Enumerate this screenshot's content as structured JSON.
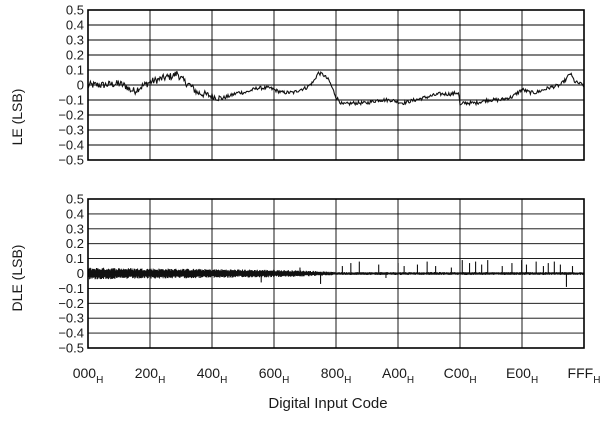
{
  "chart_data": [
    {
      "type": "line",
      "ylabel": "LE (LSB)",
      "ylim": [
        -0.5,
        0.5
      ],
      "yticks": [
        "0.5",
        "0.4",
        "0.3",
        "0.2",
        "0.1",
        "0",
        "−0.1",
        "−0.2",
        "−0.3",
        "−0.4",
        "−0.5"
      ],
      "xlim": [
        0,
        4095
      ],
      "grid": true,
      "series": [
        {
          "x": [
            0,
            128,
            256,
            320,
            340,
            384,
            420,
            512,
            600,
            640,
            700,
            740,
            760,
            800,
            840,
            900,
            1000,
            1050,
            1100,
            1180,
            1240,
            1300,
            1400,
            1500,
            1600,
            1700,
            1750,
            1800,
            1830,
            1860,
            1900,
            1940,
            1990,
            2048,
            2100,
            2200,
            2300,
            2400,
            2500,
            2600,
            2700,
            2800,
            2900,
            3000,
            3060,
            3072,
            3100,
            3200,
            3300,
            3400,
            3500,
            3584,
            3650,
            3700,
            3800,
            3900,
            3950,
            3980,
            4020,
            4095
          ],
          "y": [
            0.0,
            0.0,
            0.01,
            -0.01,
            -0.03,
            -0.04,
            -0.02,
            0.02,
            0.04,
            0.05,
            0.06,
            0.08,
            0.05,
            0.02,
            0.0,
            -0.05,
            -0.07,
            -0.08,
            -0.09,
            -0.07,
            -0.05,
            -0.05,
            -0.02,
            -0.02,
            -0.05,
            -0.05,
            -0.03,
            -0.02,
            0.0,
            0.02,
            0.08,
            0.07,
            0.03,
            -0.08,
            -0.13,
            -0.12,
            -0.12,
            -0.1,
            -0.1,
            -0.12,
            -0.1,
            -0.08,
            -0.06,
            -0.06,
            -0.05,
            -0.14,
            -0.12,
            -0.12,
            -0.1,
            -0.1,
            -0.08,
            -0.03,
            -0.05,
            -0.05,
            -0.02,
            0.0,
            0.04,
            0.08,
            0.02,
            0.0
          ]
        }
      ]
    },
    {
      "type": "line",
      "ylabel": "DLE (LSB)",
      "xlabel": "Digital Input Code",
      "ylim": [
        -0.5,
        0.5
      ],
      "yticks": [
        "0.5",
        "0.4",
        "0.3",
        "0.2",
        "0.1",
        "0",
        "−0.1",
        "−0.2",
        "−0.3",
        "−0.4",
        "−0.5"
      ],
      "xlim": [
        0,
        4095
      ],
      "grid": true,
      "xticks": [
        {
          "value": 0,
          "main": "000",
          "sub": "H"
        },
        {
          "value": 512,
          "main": "200",
          "sub": "H"
        },
        {
          "value": 1024,
          "main": "400",
          "sub": "H"
        },
        {
          "value": 1536,
          "main": "600",
          "sub": "H"
        },
        {
          "value": 2048,
          "main": "800",
          "sub": "H"
        },
        {
          "value": 2560,
          "main": "A00",
          "sub": "H"
        },
        {
          "value": 3072,
          "main": "C00",
          "sub": "H"
        },
        {
          "value": 3584,
          "main": "E00",
          "sub": "H"
        },
        {
          "value": 4095,
          "main": "FFF",
          "sub": "H"
        }
      ],
      "band_envelope": {
        "x": [
          0,
          512,
          1024,
          1536,
          1800,
          2048,
          4095
        ],
        "upper": [
          0.04,
          0.035,
          0.03,
          0.025,
          0.02,
          0.01,
          0.01
        ],
        "lower": [
          -0.04,
          -0.035,
          -0.03,
          -0.025,
          -0.02,
          -0.01,
          -0.01
        ]
      },
      "spikes": [
        {
          "x": 1430,
          "y": -0.06
        },
        {
          "x": 1750,
          "y": 0.04
        },
        {
          "x": 1920,
          "y": -0.07
        },
        {
          "x": 2100,
          "y": 0.05
        },
        {
          "x": 2170,
          "y": 0.07
        },
        {
          "x": 2240,
          "y": 0.08
        },
        {
          "x": 2400,
          "y": 0.06
        },
        {
          "x": 2460,
          "y": -0.03
        },
        {
          "x": 2560,
          "y": 0.07
        },
        {
          "x": 2610,
          "y": 0.05
        },
        {
          "x": 2720,
          "y": 0.06
        },
        {
          "x": 2800,
          "y": 0.08
        },
        {
          "x": 2870,
          "y": 0.05
        },
        {
          "x": 3000,
          "y": 0.04
        },
        {
          "x": 3090,
          "y": 0.09
        },
        {
          "x": 3150,
          "y": 0.07
        },
        {
          "x": 3200,
          "y": 0.08
        },
        {
          "x": 3250,
          "y": 0.06
        },
        {
          "x": 3300,
          "y": 0.09
        },
        {
          "x": 3420,
          "y": 0.05
        },
        {
          "x": 3500,
          "y": 0.07
        },
        {
          "x": 3580,
          "y": 0.09
        },
        {
          "x": 3620,
          "y": 0.06
        },
        {
          "x": 3700,
          "y": 0.08
        },
        {
          "x": 3760,
          "y": 0.05
        },
        {
          "x": 3800,
          "y": 0.07
        },
        {
          "x": 3850,
          "y": 0.08
        },
        {
          "x": 3900,
          "y": 0.06
        },
        {
          "x": 3950,
          "y": -0.09
        },
        {
          "x": 4000,
          "y": 0.05
        }
      ]
    }
  ]
}
